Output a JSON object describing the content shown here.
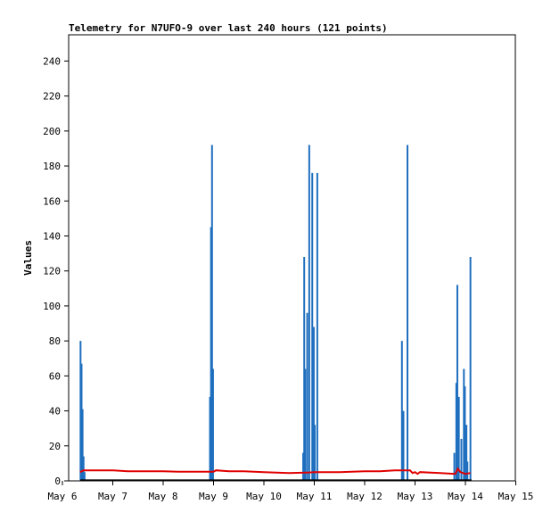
{
  "chart_data": {
    "type": "line",
    "title": "Telemetry for N7UFO-9 over last 240 hours (121 points)",
    "xlabel": "",
    "ylabel": "Values",
    "ylim": [
      0,
      255
    ],
    "y_ticks": [
      0,
      20,
      40,
      60,
      80,
      100,
      120,
      140,
      160,
      180,
      200,
      220,
      240
    ],
    "xlim": [
      "May 6",
      "May 15"
    ],
    "x_ticks": [
      "May 6",
      "May 7",
      "May 8",
      "May 9",
      "May 10",
      "May 11",
      "May 12",
      "May 13",
      "May 14",
      "May 15"
    ],
    "grid": false,
    "legend": "none",
    "series": [
      {
        "color": "#1f6fbf",
        "style": "spikes",
        "points": [
          [
            6.36,
            80
          ],
          [
            6.38,
            67
          ],
          [
            6.4,
            41
          ],
          [
            6.42,
            14
          ],
          [
            6.44,
            5
          ],
          [
            8.93,
            48
          ],
          [
            8.95,
            145
          ],
          [
            8.97,
            192
          ],
          [
            8.99,
            64
          ],
          [
            10.78,
            16
          ],
          [
            10.8,
            128
          ],
          [
            10.82,
            64
          ],
          [
            10.86,
            96
          ],
          [
            10.9,
            192
          ],
          [
            10.96,
            176
          ],
          [
            10.99,
            88
          ],
          [
            11.01,
            32
          ],
          [
            11.06,
            176
          ],
          [
            12.74,
            80
          ],
          [
            12.77,
            40
          ],
          [
            12.85,
            192
          ],
          [
            13.78,
            16
          ],
          [
            13.82,
            56
          ],
          [
            13.84,
            112
          ],
          [
            13.87,
            48
          ],
          [
            13.92,
            24
          ],
          [
            13.97,
            64
          ],
          [
            13.99,
            54
          ],
          [
            14.02,
            32
          ],
          [
            14.04,
            11
          ],
          [
            14.1,
            128
          ]
        ]
      },
      {
        "color": "#e00000",
        "style": "line",
        "points": [
          [
            6.35,
            5
          ],
          [
            6.42,
            6
          ],
          [
            7.0,
            6
          ],
          [
            7.3,
            5.5
          ],
          [
            7.5,
            5.5
          ],
          [
            8.0,
            5.5
          ],
          [
            8.3,
            5.2
          ],
          [
            8.6,
            5.2
          ],
          [
            9.0,
            5.2
          ],
          [
            9.05,
            6
          ],
          [
            9.3,
            5.5
          ],
          [
            9.6,
            5.5
          ],
          [
            10.0,
            5
          ],
          [
            10.5,
            4.5
          ],
          [
            10.9,
            4.8
          ],
          [
            11.0,
            5
          ],
          [
            11.5,
            5
          ],
          [
            12.0,
            5.5
          ],
          [
            12.3,
            5.5
          ],
          [
            12.6,
            6
          ],
          [
            12.9,
            6
          ],
          [
            12.95,
            4.5
          ],
          [
            13.0,
            5
          ],
          [
            13.05,
            4
          ],
          [
            13.1,
            5
          ],
          [
            13.5,
            4.5
          ],
          [
            13.8,
            4
          ],
          [
            13.85,
            7
          ],
          [
            13.9,
            5
          ],
          [
            14.0,
            4
          ],
          [
            14.1,
            4.5
          ]
        ]
      },
      {
        "color": "#000000",
        "style": "line",
        "points": [
          [
            6.35,
            0.3
          ],
          [
            14.12,
            0.3
          ]
        ]
      }
    ]
  }
}
